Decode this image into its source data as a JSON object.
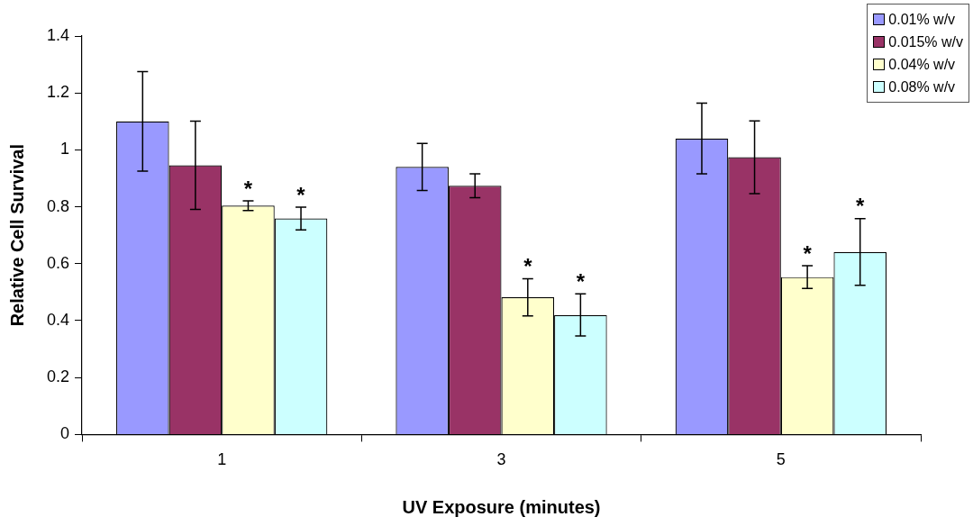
{
  "chart_data": {
    "type": "bar",
    "xlabel": "UV Exposure (minutes)",
    "ylabel": "Relative Cell Survival",
    "categories": [
      "1",
      "3",
      "5"
    ],
    "series": [
      {
        "name": "0.01% w/v",
        "color": "#9999ff",
        "values": [
          1.1,
          0.94,
          1.04
        ],
        "errors": [
          0.175,
          0.083,
          0.124
        ]
      },
      {
        "name": "0.015% w/v",
        "color": "#993366",
        "values": [
          0.946,
          0.874,
          0.974
        ],
        "errors": [
          0.155,
          0.042,
          0.128
        ]
      },
      {
        "name": "0.04% w/v",
        "color": "#ffffcc",
        "values": [
          0.804,
          0.482,
          0.553
        ],
        "errors": [
          0.017,
          0.065,
          0.04
        ],
        "value_labels": [
          "*",
          "*",
          "*"
        ]
      },
      {
        "name": "0.08% w/v",
        "color": "#ccffff",
        "values": [
          0.759,
          0.42,
          0.641
        ],
        "errors": [
          0.04,
          0.074,
          0.117
        ],
        "value_labels": [
          "*",
          "*",
          "*"
        ]
      }
    ],
    "ylim": [
      0,
      1.4
    ],
    "yticks": [
      0,
      {
        "value": 0.2,
        "label": "0.2"
      },
      {
        "value": 0.4,
        "label": "0.4"
      },
      {
        "value": 0.6,
        "label": "0.6"
      },
      {
        "value": 0.8,
        "label": "0.8"
      },
      1,
      {
        "value": 1.2,
        "label": "1.2"
      },
      {
        "value": 1.4,
        "label": "1.4"
      }
    ],
    "grid": false,
    "legend": "top right"
  }
}
